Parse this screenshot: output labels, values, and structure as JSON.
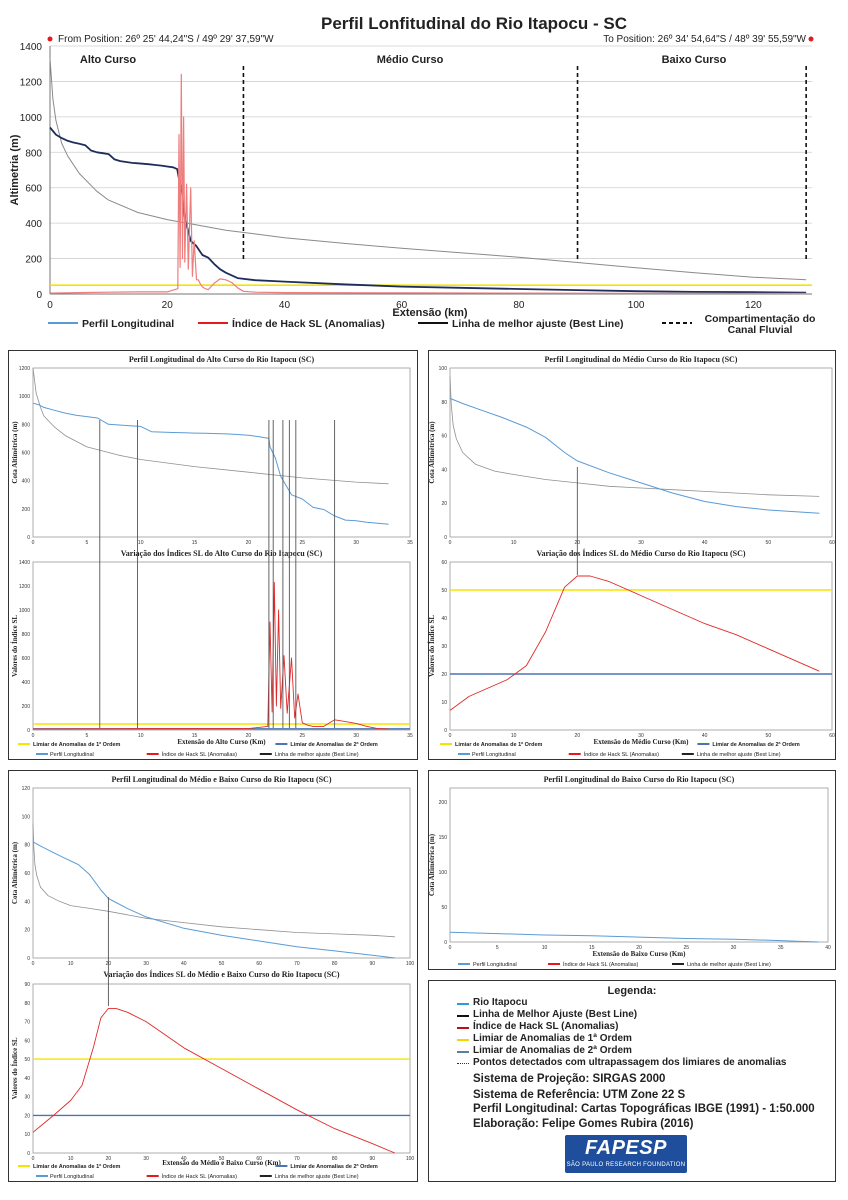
{
  "header": {
    "title": "Perfil Lonfitudinal do Rio Itapocu - SC",
    "from_position": "From Position: 26º 25' 44,24\"S / 49º 29' 37,59\"W",
    "to_position": "To Position: 26º 34' 54,64\"S / 48º 39' 55,59\"W"
  },
  "colors": {
    "profile": "#5b9bd5",
    "hack": "#e41a1c",
    "best": "#1a1a2e",
    "limiar1": "#f5e400",
    "limiar2": "#4a74b4",
    "dots": "#333333"
  },
  "chart_data": [
    {
      "id": "main",
      "type": "line",
      "title": "",
      "xlabel": "Extensão (km)",
      "ylabel": "Altimetria (m)",
      "xlim": [
        0,
        130
      ],
      "ylim": [
        0,
        1400
      ],
      "xticks": [
        0,
        20,
        40,
        60,
        80,
        100,
        120
      ],
      "yticks": [
        0,
        200,
        400,
        600,
        800,
        1000,
        1200,
        1400
      ],
      "grid": true,
      "section_labels": [
        "Alto Curso",
        "Médio Curso",
        "Baixo Curso"
      ],
      "section_boundaries_km": [
        33,
        90,
        129
      ],
      "limiar_1": 50,
      "series": [
        {
          "name": "Linha de melhor ajuste (Best Line)",
          "x": [
            0,
            0.5,
            1,
            2,
            3,
            5,
            8,
            10,
            15,
            20,
            25,
            30,
            40,
            50,
            60,
            70,
            80,
            90,
            100,
            110,
            120,
            129
          ],
          "y": [
            1330,
            1100,
            980,
            850,
            780,
            680,
            580,
            530,
            460,
            420,
            390,
            360,
            318,
            286,
            258,
            233,
            208,
            178,
            148,
            120,
            95,
            80
          ]
        },
        {
          "name": "Perfil Longitudinal",
          "x": [
            0,
            0.5,
            1,
            2,
            3,
            4,
            5,
            6,
            7,
            8,
            9,
            10,
            11,
            12,
            13,
            14,
            15,
            16,
            17,
            18,
            19,
            20,
            21,
            21.7,
            22,
            22.5,
            23,
            24,
            25,
            26,
            27,
            28,
            29,
            30,
            32,
            35,
            40,
            50,
            60,
            70,
            80,
            90,
            100,
            110,
            120,
            129
          ],
          "y": [
            940,
            920,
            900,
            880,
            865,
            855,
            848,
            840,
            810,
            800,
            795,
            790,
            760,
            750,
            745,
            740,
            738,
            735,
            732,
            728,
            725,
            720,
            715,
            705,
            650,
            580,
            430,
            300,
            270,
            220,
            205,
            170,
            140,
            120,
            90,
            78,
            70,
            55,
            42,
            35,
            28,
            22,
            16,
            12,
            10,
            8
          ]
        },
        {
          "name": "Índice de Hack SL (Anomalias)",
          "x": [
            0,
            5,
            10,
            15,
            20,
            21.8,
            22,
            22.2,
            22.4,
            22.6,
            22.8,
            23,
            23.3,
            23.6,
            24,
            24.3,
            24.6,
            25,
            25.3,
            25.6,
            26,
            26.5,
            27,
            28,
            29,
            30,
            31,
            32,
            33,
            35,
            40,
            60,
            80,
            100,
            129
          ],
          "y": [
            5,
            8,
            10,
            12,
            12,
            30,
            900,
            150,
            1240,
            200,
            1000,
            180,
            620,
            140,
            600,
            100,
            300,
            80,
            80,
            60,
            40,
            30,
            25,
            60,
            85,
            80,
            65,
            35,
            15,
            10,
            8,
            6,
            5,
            4,
            3
          ]
        }
      ]
    },
    {
      "id": "alto-profile",
      "type": "line",
      "title": "Perfil Longitudinal do Alto Curso do Rio Itapocu (SC)",
      "ylabel": "Cota Altimétrica (m)",
      "xlim": [
        0,
        35
      ],
      "ylim": [
        0,
        1200
      ],
      "xticks": [
        0,
        5,
        10,
        15,
        20,
        25,
        30,
        35
      ],
      "yticks": [
        0,
        200,
        400,
        600,
        800,
        1000,
        1200
      ],
      "series": [
        {
          "name": "Perfil Longitudinal",
          "x": [
            0,
            0.5,
            1,
            2,
            3,
            4,
            5,
            6,
            7,
            8,
            9,
            10,
            11,
            12,
            13,
            14,
            15,
            16,
            17,
            18,
            19,
            20,
            21,
            21.9,
            22,
            22.5,
            23,
            24,
            25,
            26,
            27,
            28,
            29,
            30,
            31,
            32,
            33
          ],
          "y": [
            950,
            940,
            920,
            900,
            880,
            865,
            855,
            845,
            800,
            795,
            790,
            785,
            748,
            745,
            742,
            740,
            738,
            736,
            734,
            732,
            728,
            722,
            712,
            700,
            640,
            560,
            430,
            300,
            270,
            210,
            195,
            150,
            120,
            115,
            105,
            98,
            90
          ]
        },
        {
          "name": "Linha de melhor ajuste (Best Line)",
          "x": [
            0,
            0.3,
            0.7,
            1,
            2,
            3,
            5,
            8,
            10,
            15,
            20,
            25,
            30,
            33
          ],
          "y": [
            1200,
            1020,
            920,
            860,
            780,
            720,
            640,
            580,
            550,
            500,
            460,
            420,
            390,
            378
          ]
        }
      ],
      "vlines": [
        6.2,
        9.7,
        21.9,
        22.3,
        23.2,
        23.8,
        24.4,
        28
      ]
    },
    {
      "id": "alto-sl",
      "type": "line",
      "title": "Variação dos Índices SL do Alto Curso do Rio Itapocu (SC)",
      "xlabel": "Extensão do Alto Curso (Km)",
      "ylabel": "Valores do Índice SL",
      "xlim": [
        0,
        35
      ],
      "ylim": [
        0,
        1400
      ],
      "xticks": [
        0,
        5,
        10,
        15,
        20,
        25,
        30,
        35
      ],
      "yticks": [
        0,
        200,
        400,
        600,
        800,
        1000,
        1200,
        1400
      ],
      "limiar_1": 50,
      "limiar_2": 10,
      "series": [
        {
          "name": "Índice de Hack SL (Anomalias)",
          "x": [
            0,
            5,
            10,
            15,
            20,
            21.8,
            22,
            22.2,
            22.4,
            22.6,
            22.8,
            23,
            23.3,
            23.6,
            24,
            24.3,
            24.6,
            25,
            25.5,
            26,
            27,
            28,
            29,
            30,
            31,
            32,
            33
          ],
          "y": [
            8,
            10,
            12,
            12,
            12,
            30,
            900,
            150,
            1230,
            200,
            1000,
            180,
            620,
            140,
            600,
            100,
            300,
            60,
            40,
            30,
            30,
            85,
            70,
            55,
            30,
            12,
            8
          ]
        }
      ],
      "vlines": [
        6.2,
        9.7,
        21.9,
        22.3,
        23.2,
        23.8,
        24.4,
        28
      ]
    },
    {
      "id": "medio-profile",
      "type": "line",
      "title": "Perfil Longitudinal do Médio Curso do Rio Itapocu (SC)",
      "ylabel": "Cota Altimétrica (m)",
      "xlim": [
        0,
        60
      ],
      "ylim": [
        0,
        100
      ],
      "xticks": [
        0,
        10,
        20,
        30,
        40,
        50,
        60
      ],
      "yticks": [
        0,
        20,
        40,
        60,
        80,
        100
      ],
      "series": [
        {
          "name": "Perfil Longitudinal",
          "x": [
            0,
            2,
            5,
            8,
            12,
            15,
            18,
            20,
            25,
            30,
            35,
            40,
            45,
            50,
            58
          ],
          "y": [
            82,
            79,
            75,
            71,
            65,
            59,
            50,
            45,
            38,
            32,
            26,
            21,
            18,
            16,
            14
          ]
        },
        {
          "name": "Linha de melhor ajuste (Best Line)",
          "x": [
            0,
            0.2,
            0.5,
            1,
            2,
            4,
            7,
            10,
            15,
            20,
            25,
            30,
            35,
            40,
            45,
            50,
            58
          ],
          "y": [
            95,
            78,
            66,
            58,
            50,
            43,
            39,
            37,
            34,
            32,
            30,
            29,
            28,
            27,
            26,
            25,
            24
          ]
        }
      ],
      "vlines": [
        20
      ]
    },
    {
      "id": "medio-sl",
      "type": "line",
      "title": "Variação dos Índices SL do Médio Curso do Rio Itapocu (SC)",
      "xlabel": "Extensão do Médio Curso (Km)",
      "ylabel": "Valores do Índice SL",
      "xlim": [
        0,
        60
      ],
      "ylim": [
        0,
        60
      ],
      "xticks": [
        0,
        10,
        20,
        30,
        40,
        50,
        60
      ],
      "yticks": [
        0,
        10,
        20,
        30,
        40,
        50,
        60
      ],
      "limiar_1": 50,
      "limiar_2": 20,
      "series": [
        {
          "name": "Índice de Hack SL (Anomalias)",
          "x": [
            0,
            3,
            6,
            9,
            12,
            15,
            18,
            20,
            22,
            25,
            30,
            35,
            40,
            45,
            50,
            58
          ],
          "y": [
            7,
            12,
            15,
            18,
            23,
            35,
            51,
            55,
            55,
            53,
            48,
            43,
            38,
            34,
            29,
            21
          ]
        }
      ],
      "vlines": [
        20
      ]
    },
    {
      "id": "medio-baixo-profile",
      "type": "line",
      "title": "Perfil Longitudinal do Médio e Baixo Curso do Rio Itapocu (SC)",
      "ylabel": "Cota Altimétrica (m)",
      "xlim": [
        0,
        100
      ],
      "ylim": [
        0,
        120
      ],
      "xticks": [
        0,
        10,
        20,
        30,
        40,
        50,
        60,
        70,
        80,
        90,
        100
      ],
      "yticks": [
        0,
        20,
        40,
        60,
        80,
        100,
        120
      ],
      "series": [
        {
          "name": "Perfil Longitudinal",
          "x": [
            0,
            2,
            5,
            8,
            12,
            15,
            18,
            20,
            25,
            30,
            40,
            50,
            60,
            70,
            80,
            90,
            96
          ],
          "y": [
            82,
            79,
            75,
            71,
            66,
            59,
            48,
            42,
            35,
            29,
            21,
            16,
            12,
            8,
            5,
            2,
            0
          ]
        },
        {
          "name": "Linha de melhor ajuste (Best Line)",
          "x": [
            0,
            0.2,
            0.5,
            1,
            2,
            4,
            7,
            10,
            15,
            20,
            30,
            40,
            50,
            60,
            70,
            80,
            90,
            96
          ],
          "y": [
            95,
            78,
            66,
            58,
            50,
            44,
            40,
            37,
            35,
            33,
            28,
            25,
            22,
            20,
            18,
            17,
            16,
            15
          ]
        }
      ],
      "vlines": [
        20
      ]
    },
    {
      "id": "medio-baixo-sl",
      "type": "line",
      "title": "Variação dos Índices SL do Médio e Baixo Curso do Rio Itapocu (SC)",
      "xlabel": "Extensão do Médio e Baixo Curso (Km)",
      "ylabel": "Valores do Índice SL",
      "xlim": [
        0,
        100
      ],
      "ylim": [
        0,
        90
      ],
      "xticks": [
        0,
        10,
        20,
        30,
        40,
        50,
        60,
        70,
        80,
        90,
        100
      ],
      "yticks": [
        0,
        10,
        20,
        30,
        40,
        50,
        60,
        70,
        80,
        90
      ],
      "limiar_1": 50,
      "limiar_2": 20,
      "series": [
        {
          "name": "Índice de Hack SL (Anomalias)",
          "x": [
            0,
            3,
            6,
            10,
            13,
            16,
            18,
            20,
            22,
            25,
            30,
            40,
            50,
            60,
            70,
            80,
            90,
            96
          ],
          "y": [
            11,
            16,
            21,
            28,
            36,
            56,
            72,
            77,
            77,
            75,
            70,
            56,
            45,
            34,
            23,
            13,
            5,
            0
          ]
        }
      ],
      "vlines": [
        20
      ]
    },
    {
      "id": "baixo-profile",
      "type": "line",
      "title": "Perfil Longitudinal do Baixo Curso do Rio Itapocu (SC)",
      "xlabel": "Extensão do Baixo Curso (Km)",
      "ylabel": "Cota Altimétrica (m)",
      "xlim": [
        0,
        40
      ],
      "ylim": [
        0,
        220
      ],
      "xticks": [
        0,
        5,
        10,
        15,
        20,
        25,
        30,
        35,
        40
      ],
      "yticks": [
        0,
        50,
        100,
        150,
        200
      ],
      "series": [
        {
          "name": "Perfil Longitudinal",
          "x": [
            0,
            5,
            10,
            15,
            20,
            25,
            30,
            35,
            39
          ],
          "y": [
            14,
            12,
            10,
            9,
            7,
            5,
            4,
            2,
            0
          ]
        }
      ]
    }
  ],
  "main_legend": {
    "perfil": "Perfil Longitudinal",
    "hack": "Índice de Hack SL (Anomalias)",
    "best": "Linha de melhor ajuste (Best Line)",
    "comp1": "Compartimentação do",
    "comp2": "Canal Fluvial"
  },
  "panel_legend": {
    "limiar1": "Limiar de Anomalias de 1ª Ordem",
    "limiar2": "Limiar de Anomalias de 2ª Ordem",
    "perfil": "Perfil Longitudinal",
    "hack": "Índice de Hack SL (Anomalias)",
    "best": "Linha de melhor ajuste (Best Line)"
  },
  "legend_box": {
    "title": "Legenda:",
    "items": [
      "Rio Itapocu",
      "Linha de Melhor Ajuste (Best Line)",
      "Índice de Hack SL (Anomalias)",
      "Limiar de Anomalias de 1ª Ordem",
      "Limiar de Anomalias de 2ª Ordem",
      "Pontos detectados com ultrapassagem dos limiares de anomalias"
    ]
  },
  "meta": {
    "projection": "Sistema de Projeção: SIRGAS 2000",
    "reference": "Sistema de Referência: UTM Zone 22 S",
    "profile": "Perfil Longitudinal: Cartas Topográficas IBGE (1991) - 1:50.000",
    "author": "Elaboração: Felipe Gomes Rubira (2016)"
  },
  "logo": {
    "name": "FAPESP",
    "sub": "SÃO PAULO RESEARCH FOUNDATION"
  }
}
